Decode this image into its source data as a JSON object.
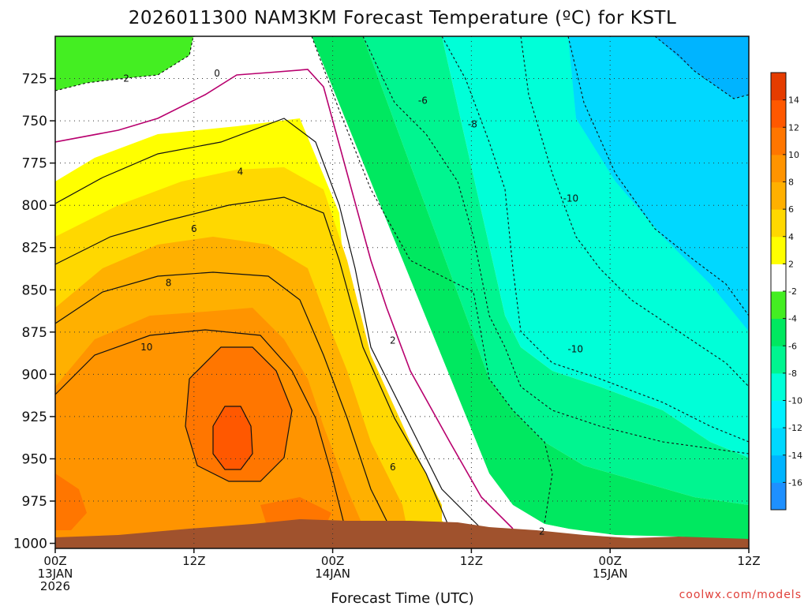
{
  "chart_data": {
    "type": "heatmap",
    "title": "2026011300 NAM3KM Forecast Temperature (ºC) for KSTL",
    "xlabel": "Forecast Time (UTC)",
    "ylabel": "",
    "x_ticks": [
      {
        "hour": 0,
        "lines": [
          "00Z",
          "13JAN",
          "2026"
        ]
      },
      {
        "hour": 12,
        "lines": [
          "12Z"
        ]
      },
      {
        "hour": 24,
        "lines": [
          "00Z",
          "14JAN"
        ]
      },
      {
        "hour": 36,
        "lines": [
          "12Z"
        ]
      },
      {
        "hour": 48,
        "lines": [
          "00Z",
          "15JAN"
        ]
      },
      {
        "hour": 60,
        "lines": [
          "12Z"
        ]
      }
    ],
    "xlim": [
      0,
      60
    ],
    "y_ticks": [
      725,
      750,
      775,
      800,
      825,
      850,
      875,
      900,
      925,
      950,
      975,
      1000
    ],
    "ylim": [
      700,
      1003
    ],
    "y_axis": "pressure (hPa), inverted",
    "colorbar": {
      "levels": [
        -18,
        -16,
        -14,
        -12,
        -10,
        -8,
        -6,
        -4,
        -2,
        2,
        4,
        6,
        8,
        10,
        12,
        14,
        16
      ],
      "tick_labels": [
        "-16",
        "-14",
        "-12",
        "-10",
        "-8",
        "-6",
        "-4",
        "-2",
        "2",
        "4",
        "6",
        "8",
        "10",
        "12",
        "14"
      ],
      "colors": [
        "#1e90ff",
        "#00b4ff",
        "#00d8ff",
        "#00f0ff",
        "#00ffd8",
        "#00f590",
        "#00e860",
        "#44ee22",
        "#ffffff",
        "#ffff00",
        "#ffd800",
        "#ffb000",
        "#ff9400",
        "#ff7600",
        "#ff5800",
        "#e53c00"
      ]
    },
    "contour_labels": [
      {
        "text": "-2",
        "hour": 6.0,
        "p": 725
      },
      {
        "text": "0",
        "hour": 14.0,
        "p": 722
      },
      {
        "text": "-6",
        "hour": 31.8,
        "p": 738
      },
      {
        "text": "-8",
        "hour": 36.1,
        "p": 752
      },
      {
        "text": "-10",
        "hour": 44.6,
        "p": 796
      },
      {
        "text": "4",
        "hour": 16.0,
        "p": 780
      },
      {
        "text": "6",
        "hour": 12.0,
        "p": 814
      },
      {
        "text": "8",
        "hour": 9.8,
        "p": 846
      },
      {
        "text": "10",
        "hour": 7.9,
        "p": 884
      },
      {
        "text": "2",
        "hour": 29.2,
        "p": 880
      },
      {
        "text": "-10",
        "hour": 45.0,
        "p": 885
      },
      {
        "text": "6",
        "hour": 29.2,
        "p": 955
      },
      {
        "text": "2",
        "hour": 42.1,
        "p": 993
      }
    ],
    "background_colors": {
      "terrain": "#a0522d"
    },
    "grid": true
  },
  "credit": "coolwx.com/models"
}
